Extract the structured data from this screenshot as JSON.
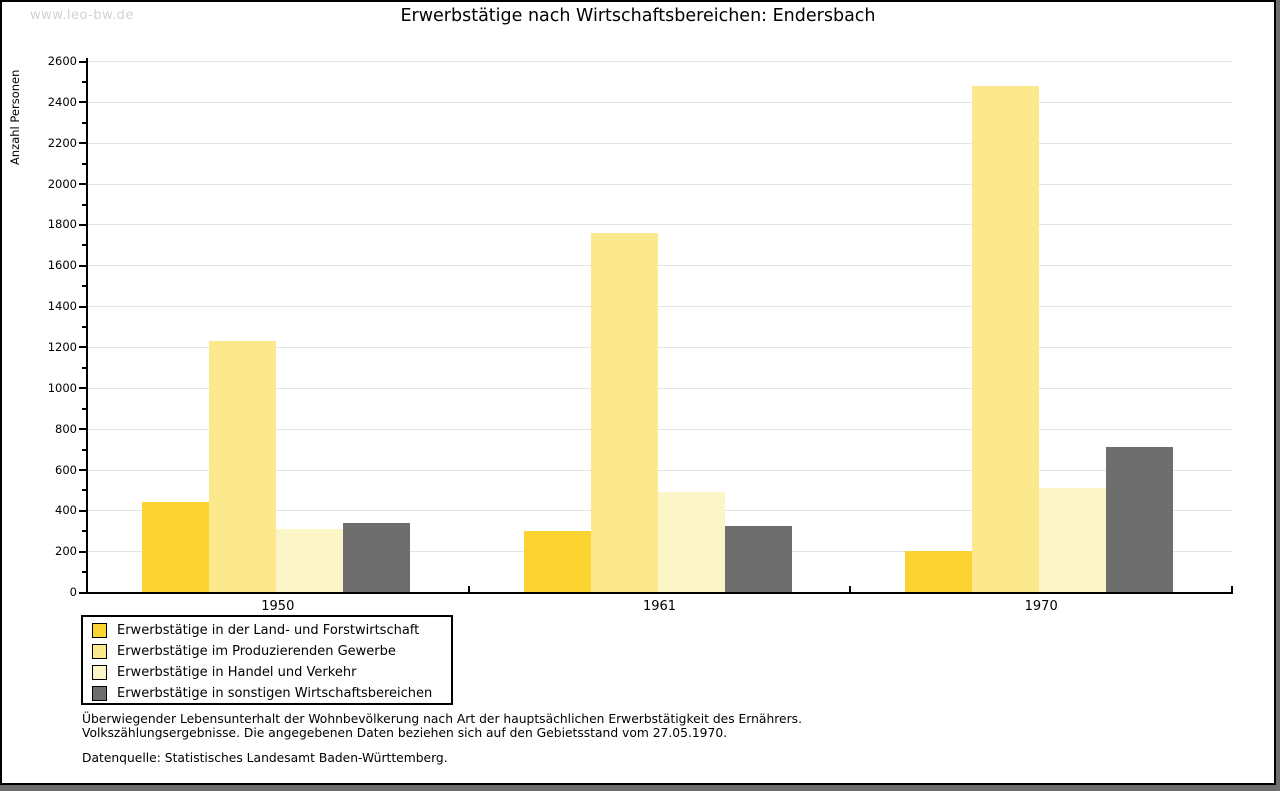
{
  "watermark": "www.leo-bw.de",
  "title": "Erwerbstätige nach Wirtschaftsbereichen: Endersbach",
  "chart_data": {
    "type": "bar",
    "title": "Erwerbstätige nach Wirtschaftsbereichen: Endersbach",
    "ylabel": "Anzahl Personen",
    "xlabel": "",
    "categories": [
      "1950",
      "1961",
      "1970"
    ],
    "series": [
      {
        "name": "Erwerbstätige in der Land- und Forstwirtschaft",
        "color": "#fcd431",
        "values": [
          440,
          300,
          200
        ]
      },
      {
        "name": "Erwerbstätige im Produzierenden Gewerbe",
        "color": "#fce98d",
        "values": [
          1230,
          1760,
          2480
        ]
      },
      {
        "name": "Erwerbstätige in Handel und Verkehr",
        "color": "#fcf5c8",
        "values": [
          310,
          490,
          510
        ]
      },
      {
        "name": "Erwerbstätige in sonstigen Wirtschaftsbereichen",
        "color": "#6e6e6e",
        "values": [
          340,
          325,
          710
        ]
      }
    ],
    "ylim": [
      0,
      2600
    ],
    "ytick_step": 200,
    "yminor_step": 100,
    "grid": true,
    "legend_position": "bottom-left"
  },
  "footer": {
    "line1": "Überwiegender Lebensunterhalt der Wohnbevölkerung nach Art der hauptsächlichen Erwerbstätigkeit des Ernährers.",
    "line2": "Volkszählungsergebnisse. Die angegebenen Daten beziehen sich auf den Gebietsstand vom 27.05.1970.",
    "source": "Datenquelle: Statistisches Landesamt Baden-Württemberg."
  },
  "colors": {
    "shadow": "#6e6e6e",
    "grid": "#e3e3e3",
    "axis": "#000000",
    "watermark": "#d2d2d2"
  }
}
